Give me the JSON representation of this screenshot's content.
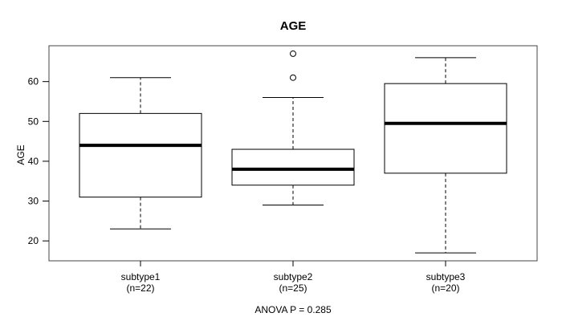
{
  "chart_data": {
    "type": "boxplot",
    "title": "AGE",
    "ylabel": "AGE",
    "xlabel": "",
    "anova_note": "ANOVA P = 0.285",
    "yticks": [
      20,
      30,
      40,
      50,
      60
    ],
    "ylim": [
      15,
      69
    ],
    "grid": false,
    "legend": "none",
    "groups": [
      {
        "label": "subtype1",
        "sublabel": "(n=22)",
        "n": 22,
        "whisker_low": 23,
        "q1": 31,
        "median": 44,
        "q3": 52,
        "whisker_high": 61,
        "outliers": []
      },
      {
        "label": "subtype2",
        "sublabel": "(n=25)",
        "n": 25,
        "whisker_low": 29,
        "q1": 34,
        "median": 38,
        "q3": 43,
        "whisker_high": 56,
        "outliers": [
          61,
          67
        ]
      },
      {
        "label": "subtype3",
        "sublabel": "(n=20)",
        "n": 20,
        "whisker_low": 17,
        "q1": 37,
        "median": 49.5,
        "q3": 59.5,
        "whisker_high": 66,
        "outliers": []
      }
    ],
    "colors": {
      "line": "#000000",
      "frame": "#444444",
      "box_fill": "#ffffff",
      "background": "#ffffff"
    }
  }
}
